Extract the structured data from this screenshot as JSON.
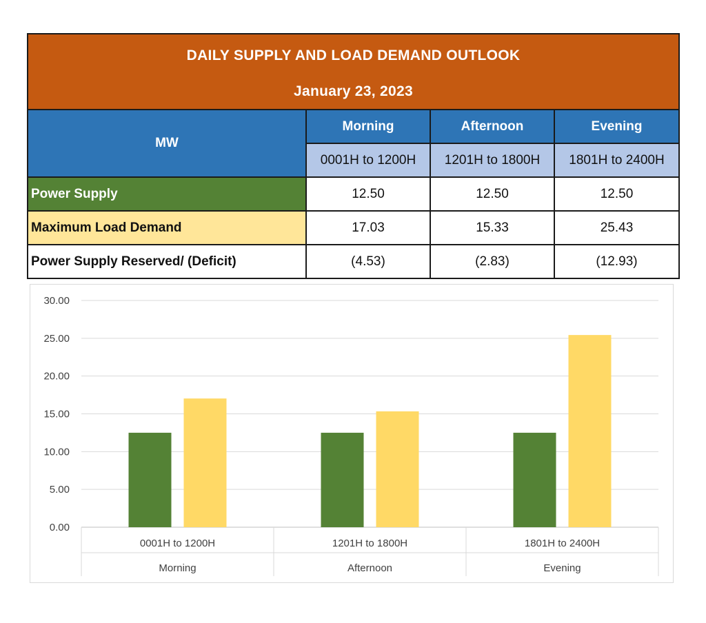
{
  "table": {
    "title": "DAILY SUPPLY AND LOAD DEMAND OUTLOOK",
    "date": "January 23, 2023",
    "unit_header": "MW",
    "periods": [
      {
        "name": "Morning",
        "range": "0001H to 1200H"
      },
      {
        "name": "Afternoon",
        "range": "1201H to 1800H"
      },
      {
        "name": "Evening",
        "range": "1801H to 2400H"
      }
    ],
    "rows": [
      {
        "label": "Power Supply",
        "values": [
          "12.50",
          "12.50",
          "12.50"
        ]
      },
      {
        "label": "Maximum Load Demand",
        "values": [
          "17.03",
          "15.33",
          "25.43"
        ]
      },
      {
        "label": "Power Supply Reserved/ (Deficit)",
        "values": [
          "(4.53)",
          "(2.83)",
          "(12.93)"
        ]
      }
    ],
    "colors": {
      "title_bg": "#c55a11",
      "header_bg": "#2e75b6",
      "range_bg": "#b4c7e7",
      "supply_bg": "#548235",
      "demand_bg": "#ffe699"
    }
  },
  "chart_data": {
    "type": "bar",
    "categories": [
      {
        "range": "0001H to 1200H",
        "period": "Morning"
      },
      {
        "range": "1201H to 1800H",
        "period": "Afternoon"
      },
      {
        "range": "1801H to 2400H",
        "period": "Evening"
      }
    ],
    "series": [
      {
        "values": [
          12.5,
          12.5,
          12.5
        ],
        "color": "#548235"
      },
      {
        "values": [
          17.03,
          15.33,
          25.43
        ],
        "color": "#ffd966"
      }
    ],
    "ylim": [
      0,
      30
    ],
    "yticks": [
      "0.00",
      "5.00",
      "10.00",
      "15.00",
      "20.00",
      "25.00",
      "30.00"
    ],
    "grid": true,
    "legend": "none"
  }
}
